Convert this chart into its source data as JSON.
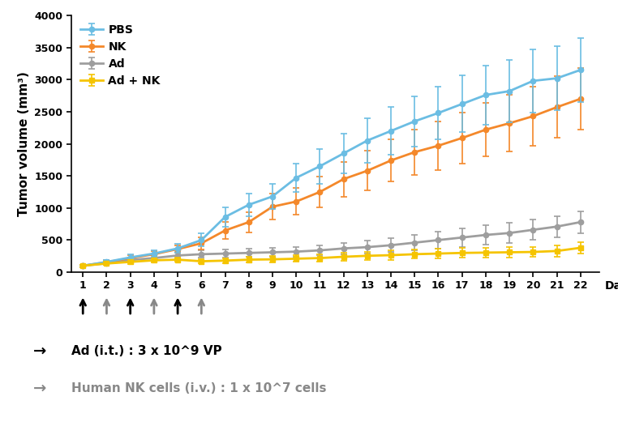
{
  "days": [
    1,
    2,
    3,
    4,
    5,
    6,
    7,
    8,
    9,
    10,
    11,
    12,
    13,
    14,
    15,
    16,
    17,
    18,
    19,
    20,
    21,
    22
  ],
  "PBS": [
    100,
    160,
    230,
    290,
    370,
    500,
    860,
    1050,
    1180,
    1470,
    1650,
    1850,
    2050,
    2200,
    2350,
    2480,
    2620,
    2760,
    2820,
    2980,
    3020,
    3150
  ],
  "PBS_err": [
    20,
    30,
    45,
    55,
    70,
    100,
    150,
    180,
    200,
    220,
    270,
    310,
    350,
    370,
    390,
    410,
    440,
    460,
    480,
    490,
    500,
    500
  ],
  "NK": [
    100,
    155,
    220,
    280,
    360,
    450,
    650,
    780,
    1020,
    1100,
    1250,
    1450,
    1580,
    1740,
    1870,
    1970,
    2090,
    2220,
    2320,
    2430,
    2570,
    2700
  ],
  "NK_err": [
    20,
    30,
    40,
    50,
    60,
    90,
    130,
    160,
    200,
    210,
    240,
    270,
    310,
    330,
    350,
    380,
    400,
    420,
    440,
    460,
    480,
    480
  ],
  "Ad": [
    100,
    140,
    190,
    220,
    260,
    280,
    290,
    300,
    310,
    320,
    340,
    370,
    390,
    420,
    460,
    500,
    540,
    580,
    610,
    660,
    710,
    780
  ],
  "Ad_err": [
    20,
    30,
    35,
    40,
    50,
    55,
    60,
    65,
    70,
    75,
    80,
    90,
    100,
    110,
    120,
    135,
    145,
    150,
    155,
    160,
    165,
    170
  ],
  "AdNK": [
    100,
    135,
    160,
    185,
    195,
    170,
    180,
    195,
    200,
    210,
    220,
    240,
    255,
    265,
    280,
    290,
    300,
    305,
    310,
    315,
    330,
    380
  ],
  "AdNK_err": [
    20,
    25,
    30,
    35,
    35,
    35,
    40,
    45,
    50,
    50,
    55,
    60,
    65,
    70,
    70,
    75,
    75,
    80,
    80,
    80,
    85,
    90
  ],
  "PBS_color": "#6BBDE3",
  "NK_color": "#F4882A",
  "Ad_color": "#9E9E9E",
  "AdNK_color": "#F5C400",
  "arrow_black_days": [
    1,
    3,
    5
  ],
  "arrow_gray_days": [
    2,
    4,
    6
  ],
  "ylabel": "Tumor volume (mm³)",
  "xlabel": "Days",
  "ylim": [
    0,
    4000
  ],
  "yticks": [
    0,
    500,
    1000,
    1500,
    2000,
    2500,
    3000,
    3500,
    4000
  ],
  "legend_labels": [
    "PBS",
    "NK",
    "Ad",
    "Ad + NK"
  ],
  "annotation_black": "Ad (i.t.) : 3 x 10^9 VP",
  "annotation_gray": "Human NK cells (i.v.) : 1 x 10^7 cells"
}
